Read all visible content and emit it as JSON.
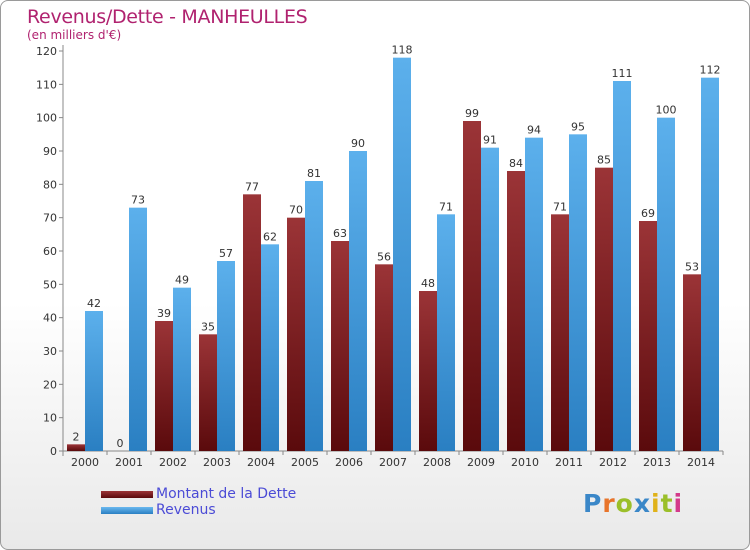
{
  "header": {
    "title": "Revenus/Dette - MANHEULLES",
    "subtitle": "(en milliers d'€)"
  },
  "chart_data": {
    "type": "bar",
    "categories": [
      "2000",
      "2001",
      "2002",
      "2003",
      "2004",
      "2005",
      "2006",
      "2007",
      "2008",
      "2009",
      "2010",
      "2011",
      "2012",
      "2013",
      "2014"
    ],
    "series": [
      {
        "name": "Montant de la Dette",
        "values": [
          2,
          0,
          39,
          35,
          77,
          70,
          63,
          56,
          48,
          99,
          84,
          71,
          85,
          69,
          53
        ],
        "color": "#7a1a1c"
      },
      {
        "name": "Revenus",
        "values": [
          42,
          73,
          49,
          57,
          62,
          81,
          90,
          118,
          71,
          91,
          94,
          95,
          111,
          100,
          112
        ],
        "color": "#4aa3e3"
      }
    ],
    "yticks": [
      0,
      10,
      20,
      30,
      40,
      50,
      60,
      70,
      80,
      90,
      100,
      110,
      120
    ],
    "ylim": [
      0,
      120
    ],
    "grid": false,
    "legend": "bottom-left"
  },
  "legend": {
    "items": [
      {
        "label": "Montant de la Dette",
        "color": "#7a1a1c"
      },
      {
        "label": "Revenus",
        "color": "#4aa3e3"
      }
    ]
  },
  "logo": {
    "letters": [
      "P",
      "r",
      "o",
      "x",
      "i",
      "t",
      "i"
    ],
    "colors": [
      "#3a87c8",
      "#e8742a",
      "#9bbf2a",
      "#3a87c8",
      "#e0b21a",
      "#9bbf2a",
      "#d43a8a"
    ]
  }
}
